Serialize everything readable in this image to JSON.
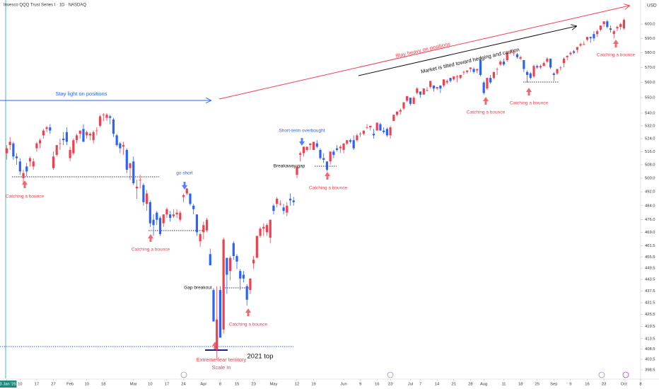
{
  "chart_data": {
    "type": "candlestick",
    "title": "Invesco QQQ Trust Series I · 1D · NASDAQ",
    "currency": "USD",
    "log_scale": true,
    "grid": false,
    "up_color": "#f0404f",
    "down_color": "#2962ff",
    "xlim": [
      -2,
      190
    ],
    "ylim": [
      394.5,
      617.4
    ],
    "xticks": [
      {
        "value": 0,
        "label": "03 Jan '25"
      },
      {
        "value": 4,
        "label": "10"
      },
      {
        "value": 9,
        "label": "17"
      },
      {
        "value": 14,
        "label": "27"
      },
      {
        "value": 19,
        "label": "Feb"
      },
      {
        "value": 24,
        "label": "10"
      },
      {
        "value": 29,
        "label": "18"
      },
      {
        "value": 38,
        "label": "Mar"
      },
      {
        "value": 43,
        "label": "10"
      },
      {
        "value": 48,
        "label": "17"
      },
      {
        "value": 53,
        "label": "24"
      },
      {
        "value": 59,
        "label": "Apr"
      },
      {
        "value": 64,
        "label": "8"
      },
      {
        "value": 69,
        "label": "15"
      },
      {
        "value": 74,
        "label": "23"
      },
      {
        "value": 80,
        "label": "May"
      },
      {
        "value": 87,
        "label": "12"
      },
      {
        "value": 92,
        "label": "19"
      },
      {
        "value": 101,
        "label": "Jun"
      },
      {
        "value": 106,
        "label": "9"
      },
      {
        "value": 111,
        "label": "16"
      },
      {
        "value": 115,
        "label": "23"
      },
      {
        "value": 121,
        "label": "Jul"
      },
      {
        "value": 124,
        "label": "7"
      },
      {
        "value": 129,
        "label": "14"
      },
      {
        "value": 134,
        "label": "21"
      },
      {
        "value": 139,
        "label": "28"
      },
      {
        "value": 143,
        "label": "Aug"
      },
      {
        "value": 149,
        "label": "11"
      },
      {
        "value": 154,
        "label": "18"
      },
      {
        "value": 159,
        "label": "25"
      },
      {
        "value": 164,
        "label": "Sep"
      },
      {
        "value": 169,
        "label": "9"
      },
      {
        "value": 174,
        "label": "16"
      },
      {
        "value": 179,
        "label": "23"
      },
      {
        "value": 185,
        "label": "Oct"
      },
      {
        "value": 190,
        "label": "8"
      }
    ],
    "yticks": [
      {
        "value": 600,
        "label": "600.0"
      },
      {
        "value": 590,
        "label": "590.0"
      },
      {
        "value": 580,
        "label": "580.0"
      },
      {
        "value": 570,
        "label": "570.0"
      },
      {
        "value": 560,
        "label": "560.0"
      },
      {
        "value": 550,
        "label": "550.0"
      },
      {
        "value": 540,
        "label": "540.0"
      },
      {
        "value": 532,
        "label": "532.0"
      },
      {
        "value": 524,
        "label": "524.0"
      },
      {
        "value": 516,
        "label": "516.0"
      },
      {
        "value": 508,
        "label": "508.0"
      },
      {
        "value": 500,
        "label": "500.0"
      },
      {
        "value": 492,
        "label": "492.0"
      },
      {
        "value": 484,
        "label": "484.0"
      },
      {
        "value": 476,
        "label": "476.0"
      },
      {
        "value": 469,
        "label": "469.0"
      },
      461.5,
      455.5,
      449.5,
      443.5,
      437.5,
      431.5,
      425.5,
      419.5,
      413.5,
      408.5,
      403.5,
      398.5
    ],
    "ohlc": [
      [
        515,
        520,
        511,
        518
      ],
      [
        520,
        525,
        517,
        522
      ],
      [
        521,
        522,
        511,
        513
      ],
      [
        513,
        515,
        508,
        512
      ],
      [
        510,
        512,
        502,
        504
      ],
      [
        500,
        505,
        497,
        503
      ],
      [
        507,
        509,
        501,
        504
      ],
      [
        510,
        513,
        507,
        512
      ],
      [
        507,
        512,
        505,
        510
      ],
      [
        518,
        522,
        516,
        521
      ],
      [
        521,
        524,
        518,
        523
      ],
      [
        526,
        530,
        524,
        529
      ],
      [
        530,
        532,
        528,
        531
      ],
      [
        531,
        533,
        527,
        529
      ],
      [
        506,
        516,
        505,
        513
      ],
      [
        514,
        520,
        513,
        520
      ],
      [
        521,
        524,
        517,
        521
      ],
      [
        524,
        528,
        520,
        523
      ],
      [
        528,
        531,
        520,
        522
      ],
      [
        512,
        519,
        510,
        517
      ],
      [
        515,
        524,
        514,
        523
      ],
      [
        523,
        527,
        521,
        526
      ],
      [
        527,
        529,
        524,
        529
      ],
      [
        530,
        533,
        522,
        522
      ],
      [
        526,
        529,
        524,
        528
      ],
      [
        526,
        528,
        523,
        527
      ],
      [
        523,
        529,
        521,
        528
      ],
      [
        529,
        531,
        526,
        529
      ],
      [
        532,
        539,
        531,
        538
      ],
      [
        539,
        540,
        535,
        539
      ],
      [
        537,
        540,
        535,
        539
      ],
      [
        538,
        539,
        533,
        537
      ],
      [
        536,
        537,
        525,
        527
      ],
      [
        526,
        527,
        519,
        520
      ],
      [
        521,
        522,
        515,
        518
      ],
      [
        519,
        522,
        514,
        520
      ],
      [
        517,
        518,
        503,
        505
      ],
      [
        506,
        509,
        499,
        509
      ],
      [
        510,
        513,
        496,
        497
      ],
      [
        494,
        499,
        488,
        495
      ],
      [
        499,
        502,
        494,
        499
      ],
      [
        496,
        497,
        484,
        486
      ],
      [
        485,
        493,
        481,
        491
      ],
      [
        486,
        487,
        472,
        474
      ],
      [
        476,
        479,
        467,
        473
      ],
      [
        480,
        481,
        473,
        476
      ],
      [
        477,
        478,
        467,
        468
      ],
      [
        474,
        479,
        472,
        479
      ],
      [
        479,
        483,
        477,
        482
      ],
      [
        479,
        481,
        475,
        477
      ],
      [
        478,
        482,
        477,
        479
      ],
      [
        479,
        482,
        477,
        480
      ],
      [
        476,
        481,
        475,
        480
      ],
      [
        489,
        491,
        486,
        490
      ],
      [
        491,
        494,
        490,
        494
      ],
      [
        491,
        491,
        484,
        485
      ],
      [
        484,
        485,
        479,
        482
      ],
      [
        479,
        479,
        467,
        469
      ],
      [
        464,
        469,
        461,
        468
      ],
      [
        469,
        475,
        465,
        473
      ],
      [
        470,
        477,
        469,
        476
      ],
      [
        457,
        460,
        451,
        451
      ],
      [
        438,
        439,
        422,
        422
      ],
      [
        408,
        440,
        403,
        423
      ],
      [
        438,
        440,
        414,
        414
      ],
      [
        418,
        466,
        416,
        465
      ],
      [
        455,
        455,
        436,
        446
      ],
      [
        448,
        456,
        443,
        455
      ],
      [
        463,
        464,
        454,
        456
      ],
      [
        456,
        457,
        449,
        453
      ],
      [
        448,
        449,
        438,
        444
      ],
      [
        446,
        448,
        442,
        444
      ],
      [
        440,
        441,
        430,
        433
      ],
      [
        438,
        444,
        436,
        444
      ],
      [
        452,
        456,
        449,
        454
      ],
      [
        455,
        467,
        455,
        467
      ],
      [
        467,
        472,
        466,
        471
      ],
      [
        471,
        474,
        467,
        472
      ],
      [
        469,
        474,
        467,
        473
      ],
      [
        466,
        476,
        463,
        476
      ],
      [
        484,
        485,
        479,
        481
      ],
      [
        485,
        489,
        483,
        488
      ],
      [
        485,
        487,
        484,
        485
      ],
      [
        483,
        485,
        479,
        481
      ],
      [
        480,
        486,
        478,
        484
      ],
      [
        488,
        491,
        484,
        487
      ],
      [
        487,
        489,
        484,
        486
      ],
      [
        502,
        508,
        500,
        507
      ],
      [
        514,
        516,
        510,
        515
      ],
      [
        515,
        519,
        513,
        519
      ],
      [
        517,
        519,
        516,
        519
      ],
      [
        520,
        521,
        517,
        521
      ],
      [
        517,
        522,
        517,
        522
      ],
      [
        521,
        523,
        518,
        519
      ],
      [
        517,
        518,
        511,
        512
      ],
      [
        512,
        515,
        509,
        511
      ],
      [
        510,
        510,
        504,
        505
      ],
      [
        510,
        516,
        508,
        516
      ],
      [
        516,
        517,
        512,
        514
      ],
      [
        518,
        520,
        516,
        517
      ],
      [
        518,
        520,
        515,
        519
      ],
      [
        517,
        521,
        515,
        521
      ],
      [
        521,
        523,
        520,
        523
      ],
      [
        523,
        524,
        521,
        522
      ],
      [
        523,
        526,
        517,
        518
      ],
      [
        523,
        527,
        522,
        526
      ],
      [
        527,
        528,
        525,
        527
      ],
      [
        527,
        529,
        526,
        529
      ],
      [
        531,
        533,
        530,
        531
      ],
      [
        531,
        532,
        529,
        532
      ],
      [
        527,
        530,
        524,
        526
      ],
      [
        529,
        534,
        529,
        534
      ],
      [
        533,
        534,
        529,
        529
      ],
      [
        529,
        531,
        527,
        528
      ],
      [
        530,
        531,
        525,
        526
      ],
      [
        526,
        532,
        524,
        531
      ],
      [
        535,
        539,
        535,
        539
      ],
      [
        539,
        541,
        538,
        541
      ],
      [
        541,
        543,
        539,
        542
      ],
      [
        543,
        547,
        542,
        547
      ],
      [
        548,
        551,
        547,
        551
      ],
      [
        550,
        550,
        545,
        546
      ],
      [
        546,
        551,
        546,
        550
      ],
      [
        553,
        557,
        552,
        556
      ],
      [
        554,
        554,
        550,
        552
      ],
      [
        552,
        556,
        552,
        556
      ],
      [
        555,
        557,
        554,
        555
      ],
      [
        557,
        561,
        556,
        561
      ],
      [
        558,
        558,
        554,
        556
      ],
      [
        556,
        557,
        555,
        557
      ],
      [
        558,
        558,
        553,
        556
      ],
      [
        558,
        562,
        557,
        562
      ],
      [
        560,
        562,
        559,
        561
      ],
      [
        563,
        563,
        560,
        561
      ],
      [
        562,
        564,
        561,
        564
      ],
      [
        564,
        565,
        560,
        564
      ],
      [
        563,
        565,
        562,
        565
      ],
      [
        567,
        568,
        565,
        567
      ],
      [
        567,
        568,
        566,
        568
      ],
      [
        569,
        570,
        567,
        570
      ],
      [
        569,
        570,
        566,
        567
      ],
      [
        568,
        569,
        566,
        569
      ],
      [
        575,
        577,
        564,
        565
      ],
      [
        560,
        561,
        552,
        553
      ],
      [
        556,
        563,
        555,
        563
      ],
      [
        563,
        565,
        559,
        560
      ],
      [
        563,
        567,
        562,
        567
      ],
      [
        569,
        570,
        565,
        569
      ],
      [
        572,
        575,
        571,
        574
      ],
      [
        574,
        576,
        571,
        572
      ],
      [
        575,
        580,
        574,
        580
      ],
      [
        581,
        582,
        579,
        581
      ],
      [
        580,
        582,
        578,
        580
      ],
      [
        579,
        580,
        576,
        577
      ],
      [
        576,
        578,
        575,
        577
      ],
      [
        575,
        575,
        567,
        569
      ],
      [
        567,
        568,
        560,
        565
      ],
      [
        566,
        567,
        562,
        563
      ],
      [
        564,
        572,
        563,
        571
      ],
      [
        571,
        572,
        569,
        570
      ],
      [
        570,
        572,
        569,
        571
      ],
      [
        571,
        574,
        571,
        573
      ],
      [
        574,
        577,
        573,
        576
      ],
      [
        576,
        576,
        569,
        570
      ],
      [
        566,
        567,
        561,
        565
      ],
      [
        566,
        569,
        565,
        569
      ],
      [
        570,
        571,
        568,
        570
      ],
      [
        573,
        577,
        570,
        576
      ],
      [
        577,
        578,
        575,
        578
      ],
      [
        579,
        581,
        578,
        580
      ],
      [
        581,
        582,
        579,
        580
      ],
      [
        582,
        584,
        580,
        584
      ],
      [
        585,
        587,
        584,
        586
      ],
      [
        586,
        588,
        585,
        586
      ],
      [
        589,
        591,
        588,
        591
      ],
      [
        591,
        591,
        587,
        590
      ],
      [
        593,
        595,
        588,
        590
      ],
      [
        593,
        596,
        591,
        595
      ],
      [
        596,
        599,
        595,
        599
      ],
      [
        600,
        602,
        598,
        602
      ],
      [
        602,
        603,
        597,
        598
      ],
      [
        597,
        599,
        594,
        596
      ],
      [
        593,
        596,
        590,
        595
      ],
      [
        597,
        599,
        595,
        598
      ],
      [
        598,
        601,
        596,
        600
      ],
      [
        597,
        604,
        596,
        603
      ]
    ],
    "annotations": [
      "Stay light on positions",
      "Stay heavy on positions",
      "Market is tilted toward hedging and caution",
      "Catching a bounce",
      "Catching a bounce",
      "Catching a bounce",
      "Catching a bounce",
      "Catching a bounce",
      "Catching a bounce",
      "Catching a bounce",
      "go short",
      "Short-term overbought",
      "Breakaway gap",
      "Gap breakout",
      "Extreme fear territory",
      "Scale In",
      "2021 top"
    ]
  }
}
